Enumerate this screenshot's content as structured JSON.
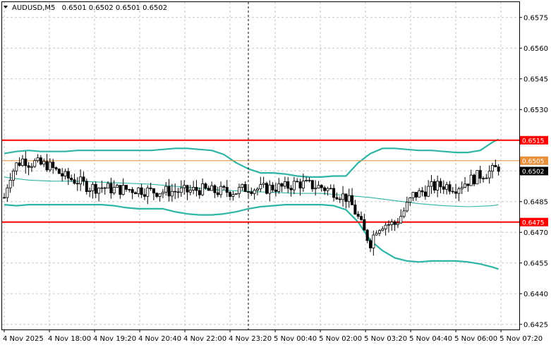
{
  "header": {
    "symbol": "AUDUSD,M5",
    "ohlc": "0.6501 0.6502 0.6501 0.6502"
  },
  "colors": {
    "background": "#ffffff",
    "grid": "#c8c8c8",
    "candle": "#000000",
    "bollinger": "#2fb5a5",
    "resistance": "#ff0000",
    "support": "#ff0000",
    "mid_level": "#e8903a",
    "price_badge": "#000000"
  },
  "chart_data": {
    "type": "candlestick",
    "symbol": "AUDUSD",
    "timeframe": "M5",
    "ylim": [
      0.64225,
      0.65825
    ],
    "y_ticks": [
      "0.6575",
      "0.6560",
      "0.6545",
      "0.6530",
      "0.6515",
      "0.6500",
      "0.6485",
      "0.6470",
      "0.6455",
      "0.6440",
      "0.6425"
    ],
    "x_ticks": [
      "4 Nov 2025",
      "4 Nov 18:00",
      "4 Nov 19:20",
      "4 Nov 20:40",
      "4 Nov 22:00",
      "4 Nov 23:20",
      "5 Nov 00:40",
      "5 Nov 02:00",
      "5 Nov 03:20",
      "5 Nov 04:40",
      "5 Nov 06:00",
      "5 Nov 07:20"
    ],
    "grid": true,
    "horizontal_levels": [
      {
        "label": "0.6515",
        "value": 0.6515,
        "color": "#ff0000"
      },
      {
        "label": "0.6505",
        "value": 0.6505,
        "color": "#e8903a"
      },
      {
        "label": "0.6475",
        "value": 0.6475,
        "color": "#ff0000"
      }
    ],
    "current_price": {
      "label": "0.6502",
      "value": 0.6502
    },
    "cursor_line_x_index": 20.0,
    "close_path": [
      [
        0,
        0.6487
      ],
      [
        0.4,
        0.6497
      ],
      [
        1,
        0.6503
      ],
      [
        1.6,
        0.6506
      ],
      [
        2,
        0.6504
      ],
      [
        2.5,
        0.6504
      ],
      [
        3,
        0.6503
      ],
      [
        3.5,
        0.6503
      ],
      [
        4,
        0.6501
      ],
      [
        4.5,
        0.6499
      ],
      [
        5,
        0.6497
      ],
      [
        6,
        0.6495
      ],
      [
        7,
        0.6492
      ],
      [
        8,
        0.6492
      ],
      [
        9,
        0.6491
      ],
      [
        10,
        0.6491
      ],
      [
        11,
        0.6491
      ],
      [
        12,
        0.649
      ],
      [
        13,
        0.649
      ],
      [
        14,
        0.649
      ],
      [
        15,
        0.649
      ],
      [
        16,
        0.6491
      ],
      [
        17,
        0.649
      ],
      [
        18,
        0.649
      ],
      [
        19,
        0.649
      ],
      [
        20,
        0.6492
      ],
      [
        21,
        0.6491
      ],
      [
        22,
        0.6492
      ],
      [
        23,
        0.6492
      ],
      [
        23.5,
        0.6493
      ],
      [
        24,
        0.6494
      ],
      [
        25,
        0.6493
      ],
      [
        26,
        0.6492
      ],
      [
        27,
        0.649
      ],
      [
        28,
        0.6487
      ],
      [
        28.5,
        0.6483
      ],
      [
        29,
        0.6477
      ],
      [
        29.5,
        0.647
      ],
      [
        30,
        0.6465
      ],
      [
        30.5,
        0.6472
      ],
      [
        31,
        0.6474
      ],
      [
        32,
        0.6474
      ],
      [
        32.5,
        0.6478
      ],
      [
        33,
        0.6483
      ],
      [
        33.5,
        0.6488
      ],
      [
        34,
        0.6489
      ],
      [
        35,
        0.6492
      ],
      [
        36,
        0.6493
      ],
      [
        37,
        0.6492
      ],
      [
        38,
        0.6495
      ],
      [
        39,
        0.6498
      ],
      [
        40,
        0.65
      ],
      [
        40.5,
        0.6502
      ]
    ],
    "series": [
      {
        "name": "",
        "points": [
          [
            0,
            0.65085
          ],
          [
            1,
            0.65095
          ],
          [
            2,
            0.651
          ],
          [
            3,
            0.65095
          ],
          [
            4,
            0.65095
          ],
          [
            5,
            0.65095
          ],
          [
            6,
            0.651
          ],
          [
            7,
            0.651
          ],
          [
            8,
            0.651
          ],
          [
            9,
            0.651
          ],
          [
            10,
            0.651
          ],
          [
            11,
            0.651
          ],
          [
            12,
            0.651
          ],
          [
            13,
            0.65105
          ],
          [
            14,
            0.6511
          ],
          [
            15,
            0.6511
          ],
          [
            16,
            0.65105
          ],
          [
            17,
            0.651
          ],
          [
            18,
            0.6508
          ],
          [
            19,
            0.6504
          ],
          [
            20,
            0.6501
          ],
          [
            21,
            0.6499
          ],
          [
            22,
            0.6499
          ],
          [
            23,
            0.64985
          ],
          [
            24,
            0.64975
          ],
          [
            25,
            0.6497
          ],
          [
            26,
            0.6497
          ],
          [
            27,
            0.64975
          ],
          [
            28,
            0.64975
          ],
          [
            29,
            0.6504
          ],
          [
            30,
            0.65085
          ],
          [
            31,
            0.6511
          ],
          [
            32,
            0.6511
          ],
          [
            33,
            0.65105
          ],
          [
            34,
            0.651
          ],
          [
            35,
            0.651
          ],
          [
            36,
            0.65095
          ],
          [
            37,
            0.6509
          ],
          [
            38,
            0.6509
          ],
          [
            39,
            0.651
          ],
          [
            40,
            0.6514
          ],
          [
            40.5,
            0.65155
          ]
        ]
      },
      {
        "name": "",
        "points": [
          [
            0,
            0.6497
          ],
          [
            2,
            0.64955
          ],
          [
            4,
            0.6495
          ],
          [
            6,
            0.6495
          ],
          [
            8,
            0.64945
          ],
          [
            10,
            0.6494
          ],
          [
            12,
            0.64935
          ],
          [
            14,
            0.64925
          ],
          [
            16,
            0.64915
          ],
          [
            18,
            0.64905
          ],
          [
            20,
            0.649
          ],
          [
            22,
            0.64895
          ],
          [
            24,
            0.6489
          ],
          [
            26,
            0.6489
          ],
          [
            28,
            0.6488
          ],
          [
            30,
            0.6487
          ],
          [
            32,
            0.64855
          ],
          [
            34,
            0.6484
          ],
          [
            36,
            0.6483
          ],
          [
            38,
            0.64825
          ],
          [
            40,
            0.6483
          ],
          [
            40.5,
            0.64835
          ]
        ]
      },
      {
        "name": "",
        "points": [
          [
            0,
            0.64835
          ],
          [
            1,
            0.6483
          ],
          [
            2,
            0.64835
          ],
          [
            3,
            0.64835
          ],
          [
            4,
            0.64835
          ],
          [
            5,
            0.64835
          ],
          [
            6,
            0.64835
          ],
          [
            7,
            0.64835
          ],
          [
            8,
            0.64835
          ],
          [
            9,
            0.6483
          ],
          [
            10,
            0.6482
          ],
          [
            11,
            0.64815
          ],
          [
            12,
            0.64815
          ],
          [
            13,
            0.64815
          ],
          [
            14,
            0.648
          ],
          [
            15,
            0.6479
          ],
          [
            16,
            0.64785
          ],
          [
            17,
            0.64785
          ],
          [
            18,
            0.6479
          ],
          [
            19,
            0.648
          ],
          [
            20,
            0.64815
          ],
          [
            21,
            0.64825
          ],
          [
            22,
            0.6483
          ],
          [
            23,
            0.64835
          ],
          [
            24,
            0.64835
          ],
          [
            25,
            0.64835
          ],
          [
            26,
            0.64835
          ],
          [
            27,
            0.6483
          ],
          [
            28,
            0.6481
          ],
          [
            29,
            0.6475
          ],
          [
            30,
            0.6466
          ],
          [
            31,
            0.6461
          ],
          [
            32,
            0.64575
          ],
          [
            33,
            0.6456
          ],
          [
            34,
            0.64555
          ],
          [
            35,
            0.6456
          ],
          [
            36,
            0.6456
          ],
          [
            37,
            0.6456
          ],
          [
            38,
            0.64555
          ],
          [
            39,
            0.64545
          ],
          [
            40,
            0.6453
          ],
          [
            40.5,
            0.6452
          ]
        ]
      }
    ]
  }
}
